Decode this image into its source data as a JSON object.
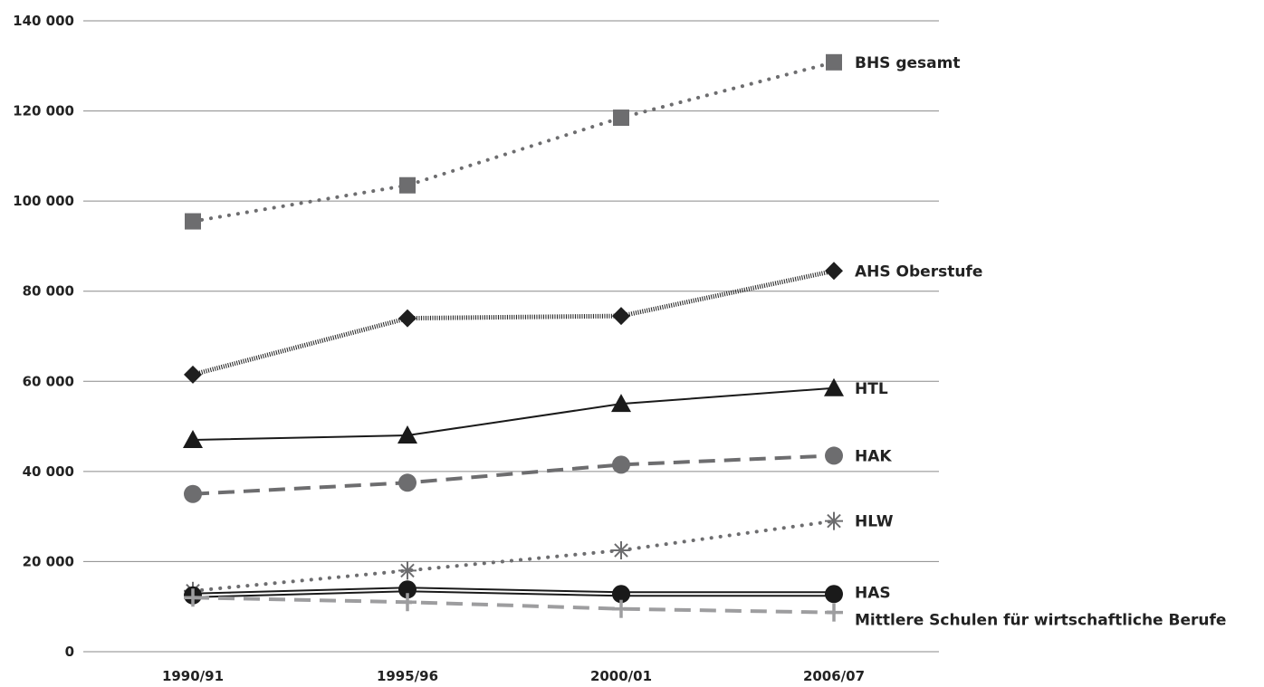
{
  "chart_data": {
    "type": "line",
    "categories": [
      "1990/91",
      "1995/96",
      "2000/01",
      "2006/07"
    ],
    "ylim": [
      0,
      140000
    ],
    "yticks": [
      0,
      20000,
      40000,
      60000,
      80000,
      100000,
      120000,
      140000
    ],
    "ytick_labels": [
      "0",
      "20 000",
      "40 000",
      "60 000",
      "80 000",
      "100 000",
      "120 000",
      "140 000"
    ],
    "grid": true,
    "legend": "direct labels at right end of each line",
    "series": [
      {
        "name": "BHS gesamt",
        "values": [
          95500,
          103500,
          118500,
          130800
        ],
        "color": "#6d6d6f",
        "marker": "square",
        "line": "dotted"
      },
      {
        "name": "AHS Oberstufe",
        "values": [
          61500,
          74000,
          74500,
          84500
        ],
        "color": "#1f1f1f",
        "marker": "diamond",
        "line": "hatched"
      },
      {
        "name": "HTL",
        "values": [
          47000,
          48000,
          55000,
          58500
        ],
        "color": "#1a1a1a",
        "marker": "triangle",
        "line": "solid"
      },
      {
        "name": "HAK",
        "values": [
          35000,
          37500,
          41500,
          43500
        ],
        "color": "#6d6d6f",
        "marker": "circle",
        "line": "dashed"
      },
      {
        "name": "HLW",
        "values": [
          13500,
          18000,
          22500,
          29000
        ],
        "color": "#6d6d6f",
        "marker": "asterisk",
        "line": "dotted"
      },
      {
        "name": "HAS",
        "values": [
          12500,
          13800,
          12800,
          12800
        ],
        "color": "#1a1a1a",
        "marker": "circle",
        "line": "double"
      },
      {
        "name": "Mittlere Schulen für wirtschaftliche Berufe",
        "values": [
          12000,
          11000,
          9500,
          8700
        ],
        "color": "#9d9d9f",
        "marker": "plus",
        "line": "dashed"
      }
    ]
  }
}
